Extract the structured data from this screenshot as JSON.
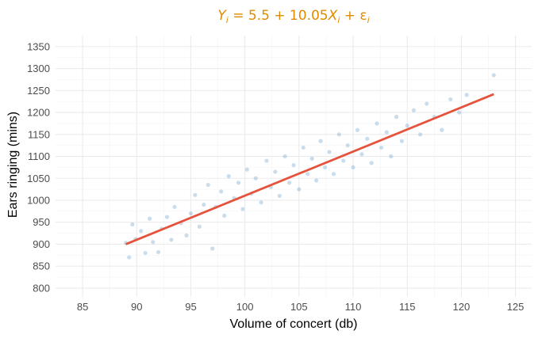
{
  "chart_data": {
    "type": "scatter",
    "title": "Y_i = 5.5 + 10.05X_i + ε_i",
    "title_parts": {
      "y": "Y",
      "y_sub": "i",
      "equation": " = 5.5 + 10.05",
      "x": "X",
      "x_sub": "i",
      "plus": " + ",
      "eps": "ε",
      "eps_sub": "i"
    },
    "xlabel": "Volume of concert (db)",
    "ylabel": "Ears ringing (mins)",
    "xlim": [
      82.5,
      126.5
    ],
    "ylim": [
      780,
      1375
    ],
    "xticks": [
      85,
      90,
      95,
      100,
      105,
      110,
      115,
      120,
      125
    ],
    "yticks": [
      800,
      850,
      900,
      950,
      1000,
      1050,
      1100,
      1150,
      1200,
      1250,
      1300,
      1350
    ],
    "grid": true,
    "regression_line": {
      "intercept": 5.5,
      "slope": 10.05,
      "x_range": [
        89,
        123
      ],
      "color": "#e5533c"
    },
    "points_color": "#5a96c4",
    "title_color": "#e08a00",
    "sample_points": [
      [
        89.0,
        903
      ],
      [
        89.3,
        870
      ],
      [
        89.6,
        945
      ],
      [
        89.9,
        912
      ],
      [
        90.4,
        930
      ],
      [
        90.8,
        880
      ],
      [
        91.2,
        958
      ],
      [
        91.5,
        905
      ],
      [
        92.0,
        882
      ],
      [
        92.3,
        935
      ],
      [
        92.8,
        962
      ],
      [
        93.2,
        910
      ],
      [
        93.5,
        985
      ],
      [
        94.1,
        948
      ],
      [
        94.6,
        920
      ],
      [
        95.0,
        970
      ],
      [
        95.4,
        1012
      ],
      [
        95.8,
        940
      ],
      [
        96.2,
        990
      ],
      [
        96.6,
        1035
      ],
      [
        97.0,
        890
      ],
      [
        97.3,
        985
      ],
      [
        97.8,
        1020
      ],
      [
        98.1,
        965
      ],
      [
        98.5,
        1055
      ],
      [
        99.0,
        1005
      ],
      [
        99.4,
        1040
      ],
      [
        99.8,
        980
      ],
      [
        100.2,
        1070
      ],
      [
        100.6,
        1015
      ],
      [
        101.0,
        1050
      ],
      [
        101.5,
        995
      ],
      [
        102.0,
        1090
      ],
      [
        102.4,
        1030
      ],
      [
        102.8,
        1065
      ],
      [
        103.2,
        1010
      ],
      [
        103.7,
        1100
      ],
      [
        104.1,
        1040
      ],
      [
        104.5,
        1080
      ],
      [
        105.0,
        1025
      ],
      [
        105.4,
        1120
      ],
      [
        105.8,
        1060
      ],
      [
        106.2,
        1095
      ],
      [
        106.6,
        1045
      ],
      [
        107.0,
        1135
      ],
      [
        107.4,
        1075
      ],
      [
        107.8,
        1110
      ],
      [
        108.2,
        1060
      ],
      [
        108.7,
        1150
      ],
      [
        109.1,
        1090
      ],
      [
        109.5,
        1125
      ],
      [
        110.0,
        1075
      ],
      [
        110.4,
        1160
      ],
      [
        110.8,
        1105
      ],
      [
        111.3,
        1140
      ],
      [
        111.7,
        1085
      ],
      [
        112.2,
        1175
      ],
      [
        112.6,
        1120
      ],
      [
        113.1,
        1155
      ],
      [
        113.5,
        1100
      ],
      [
        114.0,
        1190
      ],
      [
        114.5,
        1135
      ],
      [
        115.0,
        1170
      ],
      [
        115.6,
        1205
      ],
      [
        116.2,
        1150
      ],
      [
        116.8,
        1220
      ],
      [
        117.5,
        1190
      ],
      [
        118.2,
        1160
      ],
      [
        119.0,
        1230
      ],
      [
        119.8,
        1200
      ],
      [
        120.5,
        1240
      ],
      [
        123.0,
        1285
      ]
    ]
  }
}
